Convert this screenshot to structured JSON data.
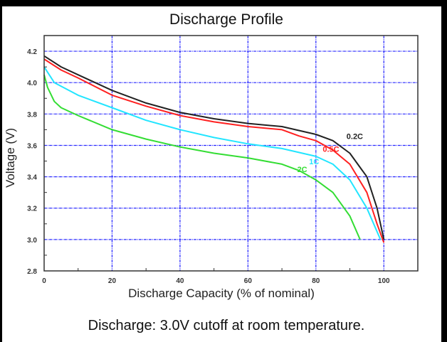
{
  "chart_data": {
    "type": "line",
    "title": "Discharge Profile",
    "xlabel": "Discharge Capacity (% of nominal)",
    "ylabel": "Voltage (V)",
    "caption": "Discharge: 3.0V cutoff at room temperature.",
    "xlim": [
      0,
      110
    ],
    "ylim": [
      2.8,
      4.3
    ],
    "xticks": [
      0,
      20,
      40,
      60,
      80,
      100
    ],
    "xtick_labels": [
      "0",
      "20",
      "40",
      "60",
      "80",
      "100"
    ],
    "yticks": [
      2.8,
      3.0,
      3.2,
      3.4,
      3.6,
      3.8,
      4.0,
      4.2
    ],
    "ytick_labels": [
      "2.8",
      "3.0",
      "3.2",
      "3.4",
      "3.6",
      "3.8",
      "4.0",
      "4.2"
    ],
    "grid": true,
    "series": [
      {
        "name": "0.2C",
        "color": "#222222",
        "label_at": [
          89,
          3.64
        ],
        "x": [
          0,
          5,
          10,
          20,
          30,
          40,
          50,
          60,
          70,
          80,
          85,
          90,
          95,
          98,
          100
        ],
        "y": [
          4.17,
          4.1,
          4.05,
          3.95,
          3.87,
          3.81,
          3.77,
          3.74,
          3.72,
          3.67,
          3.63,
          3.55,
          3.4,
          3.2,
          3.0
        ]
      },
      {
        "name": "0.5C",
        "color": "#ff2020",
        "label_at": [
          82,
          3.56
        ],
        "x": [
          0,
          5,
          10,
          20,
          30,
          40,
          50,
          60,
          70,
          75,
          80,
          85,
          90,
          95,
          98,
          100
        ],
        "y": [
          4.15,
          4.08,
          4.03,
          3.92,
          3.85,
          3.79,
          3.75,
          3.72,
          3.7,
          3.66,
          3.63,
          3.57,
          3.48,
          3.3,
          3.1,
          2.98
        ]
      },
      {
        "name": "1C",
        "color": "#22e5ff",
        "label_at": [
          78,
          3.48
        ],
        "x": [
          0,
          3,
          10,
          20,
          30,
          40,
          50,
          60,
          70,
          80,
          85,
          90,
          95,
          99
        ],
        "y": [
          4.1,
          4.0,
          3.92,
          3.84,
          3.76,
          3.7,
          3.65,
          3.61,
          3.58,
          3.53,
          3.48,
          3.38,
          3.2,
          3.0
        ]
      },
      {
        "name": "2C",
        "color": "#33dd33",
        "label_at": [
          74.5,
          3.43
        ],
        "x": [
          0,
          1,
          3,
          5,
          10,
          20,
          30,
          40,
          50,
          60,
          70,
          75,
          80,
          85,
          90,
          93
        ],
        "y": [
          4.05,
          3.97,
          3.88,
          3.84,
          3.79,
          3.7,
          3.64,
          3.59,
          3.55,
          3.52,
          3.48,
          3.44,
          3.38,
          3.3,
          3.15,
          3.0
        ]
      }
    ]
  }
}
